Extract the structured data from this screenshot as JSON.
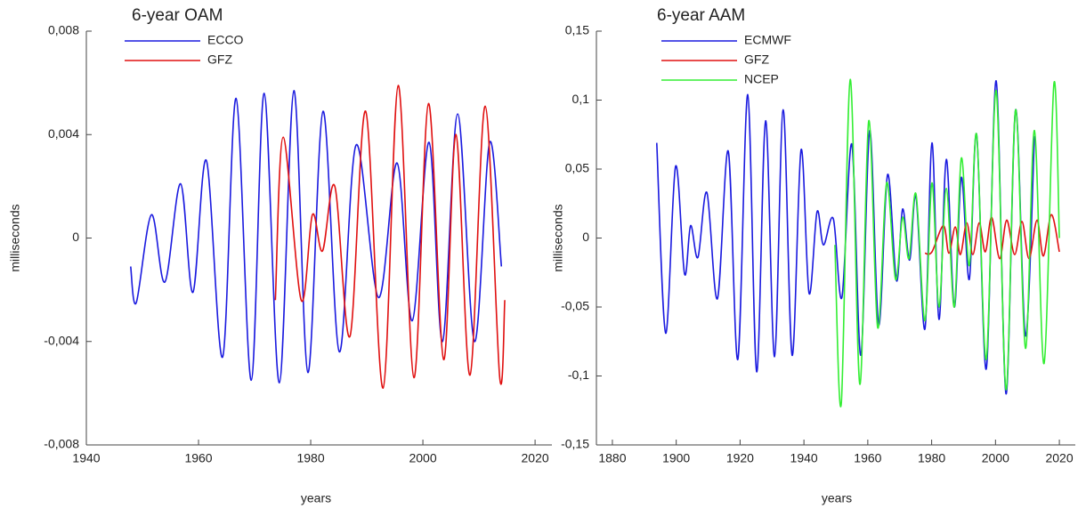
{
  "chart_data": [
    {
      "type": "line",
      "title": "6-year OAM",
      "x_label": "years",
      "y_label": "milliseconds",
      "xlim": [
        1940,
        2023
      ],
      "ylim": [
        -0.008,
        0.008
      ],
      "xticks": [
        1940,
        1960,
        1980,
        2000,
        2020
      ],
      "yticks": [
        {
          "value": -0.008,
          "label": "-0,008"
        },
        {
          "value": -0.004,
          "label": "-0,004"
        },
        0,
        {
          "value": 0.004,
          "label": "0,004"
        },
        {
          "value": 0.008,
          "label": "0,008"
        }
      ],
      "series": [
        {
          "name": "ECCO",
          "color": "#1a1adf",
          "x": [
            1947.9,
            1948.9,
            1951.6,
            1954.0,
            1956.8,
            1959.0,
            1961.4,
            1964.3,
            1966.7,
            1969.4,
            1971.7,
            1974.4,
            1977.0,
            1979.5,
            1982.2,
            1985.1,
            1988.1,
            1992.1,
            1995.4,
            1998.1,
            2001.1,
            2003.5,
            2006.2,
            2009.2,
            2011.9,
            2014.0
          ],
          "values": [
            -0.0011,
            -0.0025,
            0.0009,
            -0.0017,
            0.0021,
            -0.0021,
            0.003,
            -0.0046,
            0.0054,
            -0.0055,
            0.0056,
            -0.0056,
            0.0057,
            -0.0052,
            0.0049,
            -0.0044,
            0.0036,
            -0.0023,
            0.0029,
            -0.0032,
            0.0037,
            -0.004,
            0.0048,
            -0.004,
            0.0037,
            -0.0011
          ]
        },
        {
          "name": "GFZ",
          "color": "#e01010",
          "x": [
            1973.7,
            1975.1,
            1978.3,
            1980.3,
            1982.1,
            1984.3,
            1987.0,
            1989.8,
            1992.9,
            1995.6,
            1998.4,
            2001.0,
            2003.7,
            2005.9,
            2008.4,
            2011.1,
            2013.7,
            2014.6
          ],
          "values": [
            -0.0024,
            0.0039,
            -0.0024,
            0.0009,
            -0.0005,
            0.002,
            -0.0038,
            0.0049,
            -0.0058,
            0.0059,
            -0.0054,
            0.0052,
            -0.0047,
            0.004,
            -0.0053,
            0.0051,
            -0.0054,
            -0.0024
          ]
        }
      ]
    },
    {
      "type": "line",
      "title": "6-year AAM",
      "x_label": "years",
      "y_label": "milliseconds",
      "xlim": [
        1875,
        2025
      ],
      "ylim": [
        -0.15,
        0.15
      ],
      "xticks": [
        1880,
        1900,
        1920,
        1940,
        1960,
        1980,
        2000,
        2020
      ],
      "yticks": [
        {
          "value": -0.15,
          "label": "-0,15"
        },
        {
          "value": -0.1,
          "label": "-0,1"
        },
        {
          "value": -0.05,
          "label": "-0,05"
        },
        0,
        {
          "value": 0.05,
          "label": "0,05"
        },
        {
          "value": 0.1,
          "label": "0,1"
        },
        {
          "value": 0.15,
          "label": "0,15"
        }
      ],
      "series": [
        {
          "name": "ECMWF",
          "color": "#1a1adf",
          "x": [
            1893.9,
            1896.7,
            1899.8,
            1902.6,
            1904.5,
            1906.8,
            1909.6,
            1912.9,
            1916.3,
            1919.3,
            1922.4,
            1925.2,
            1928.0,
            1930.8,
            1933.5,
            1936.3,
            1939.1,
            1941.6,
            1944.1,
            1946.1,
            1949.2,
            1951.9,
            1955.0,
            1957.8,
            1960.6,
            1963.4,
            1966.2,
            1969.0,
            1970.9,
            1973.1,
            1975.1,
            1977.9,
            1980.1,
            1982.3,
            1984.6,
            1987.1,
            1989.3,
            1991.8,
            1994.1,
            1997.1,
            2000.2,
            2003.3,
            2006.3,
            2009.4,
            2012.2
          ],
          "values": [
            0.069,
            -0.069,
            0.052,
            -0.026,
            0.009,
            -0.014,
            0.033,
            -0.044,
            0.063,
            -0.088,
            0.104,
            -0.097,
            0.085,
            -0.086,
            0.093,
            -0.085,
            0.064,
            -0.04,
            0.019,
            -0.005,
            0.014,
            -0.043,
            0.068,
            -0.085,
            0.078,
            -0.063,
            0.046,
            -0.031,
            0.021,
            -0.016,
            0.03,
            -0.066,
            0.069,
            -0.059,
            0.057,
            -0.05,
            0.044,
            -0.03,
            0.075,
            -0.095,
            0.114,
            -0.113,
            0.093,
            -0.071,
            0.074
          ]
        },
        {
          "name": "GFZ",
          "color": "#e01010",
          "x": [
            1977.9,
            1980.1,
            1983.7,
            1985.4,
            1987.4,
            1989.0,
            1991.0,
            1992.9,
            1994.9,
            1996.8,
            1998.8,
            2001.3,
            2003.5,
            2006.0,
            2008.3,
            2010.5,
            2013.0,
            2015.0,
            2017.5,
            2020.0
          ],
          "values": [
            -0.011,
            -0.01,
            0.009,
            -0.011,
            0.008,
            -0.012,
            0.011,
            -0.012,
            0.011,
            -0.01,
            0.015,
            -0.015,
            0.013,
            -0.012,
            0.012,
            -0.015,
            0.013,
            -0.013,
            0.017,
            -0.01
          ]
        },
        {
          "name": "NCEP",
          "color": "#33ee33",
          "x": [
            1949.7,
            1951.7,
            1954.5,
            1957.5,
            1960.3,
            1963.1,
            1965.9,
            1968.7,
            1970.9,
            1972.9,
            1975.1,
            1977.9,
            1980.1,
            1982.3,
            1984.6,
            1987.1,
            1989.3,
            1991.8,
            1994.1,
            1997.1,
            2000.2,
            2003.3,
            2006.3,
            2009.4,
            2012.2,
            2015.2,
            2018.3,
            2020.0
          ],
          "values": [
            -0.005,
            -0.12,
            0.115,
            -0.106,
            0.085,
            -0.065,
            0.04,
            -0.03,
            0.015,
            -0.015,
            0.032,
            -0.06,
            0.04,
            -0.05,
            0.036,
            -0.05,
            0.058,
            -0.02,
            0.075,
            -0.088,
            0.107,
            -0.11,
            0.093,
            -0.08,
            0.078,
            -0.091,
            0.112,
            0.0
          ]
        }
      ]
    }
  ]
}
